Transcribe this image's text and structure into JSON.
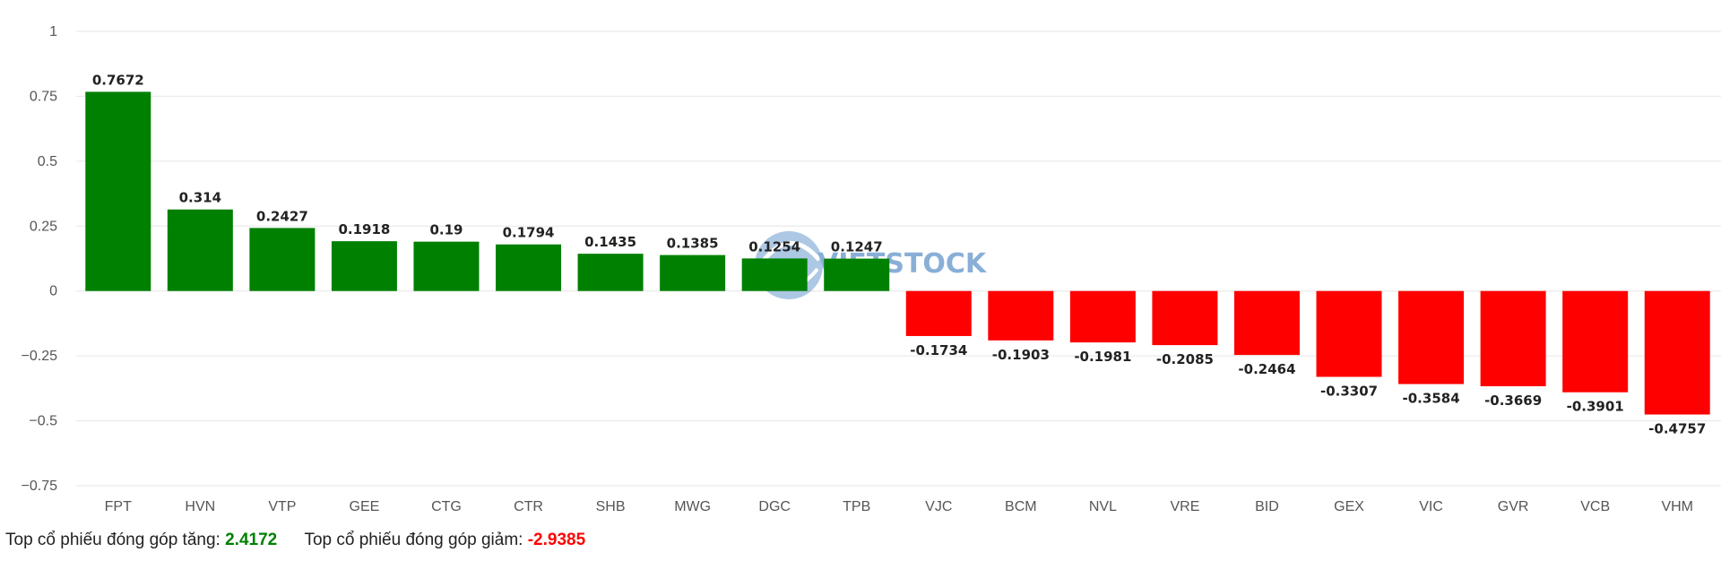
{
  "chart_data": {
    "type": "bar",
    "categories": [
      "FPT",
      "HVN",
      "VTP",
      "GEE",
      "CTG",
      "CTR",
      "SHB",
      "MWG",
      "DGC",
      "TPB",
      "VJC",
      "BCM",
      "NVL",
      "VRE",
      "BID",
      "GEX",
      "VIC",
      "GVR",
      "VCB",
      "VHM"
    ],
    "values": [
      0.7672,
      0.314,
      0.2427,
      0.1918,
      0.19,
      0.1794,
      0.1435,
      0.1385,
      0.1254,
      0.1247,
      -0.1734,
      -0.1903,
      -0.1981,
      -0.2085,
      -0.2464,
      -0.3307,
      -0.3584,
      -0.3669,
      -0.3901,
      -0.4757
    ],
    "value_labels": [
      "0.7672",
      "0.314",
      "0.2427",
      "0.1918",
      "0.19",
      "0.1794",
      "0.1435",
      "0.1385",
      "0.1254",
      "0.1247",
      "-0.1734",
      "-0.1903",
      "-0.1981",
      "-0.2085",
      "-0.2464",
      "-0.3307",
      "-0.3584",
      "-0.3669",
      "-0.3901",
      "-0.4757"
    ],
    "y_ticks": [
      1,
      0.75,
      0.5,
      0.25,
      0,
      -0.25,
      -0.5,
      -0.75
    ],
    "y_tick_labels": [
      "1",
      "0.75",
      "0.5",
      "0.25",
      "0",
      "−0.25",
      "−0.5",
      "−0.75"
    ],
    "ylim": [
      -0.75,
      1
    ],
    "grid": true,
    "positive_color": "#008000",
    "negative_color": "#ff0000",
    "watermark": "VIETSTOCK",
    "title": "",
    "xlabel": "",
    "ylabel": ""
  },
  "summary": {
    "gain_label": "Top cổ phiếu đóng góp tăng:",
    "gain_value": "2.4172",
    "loss_label": "Top cổ phiếu đóng góp giảm:",
    "loss_value": "-2.9385",
    "gain_color": "#008000",
    "loss_color": "#ff0000"
  }
}
